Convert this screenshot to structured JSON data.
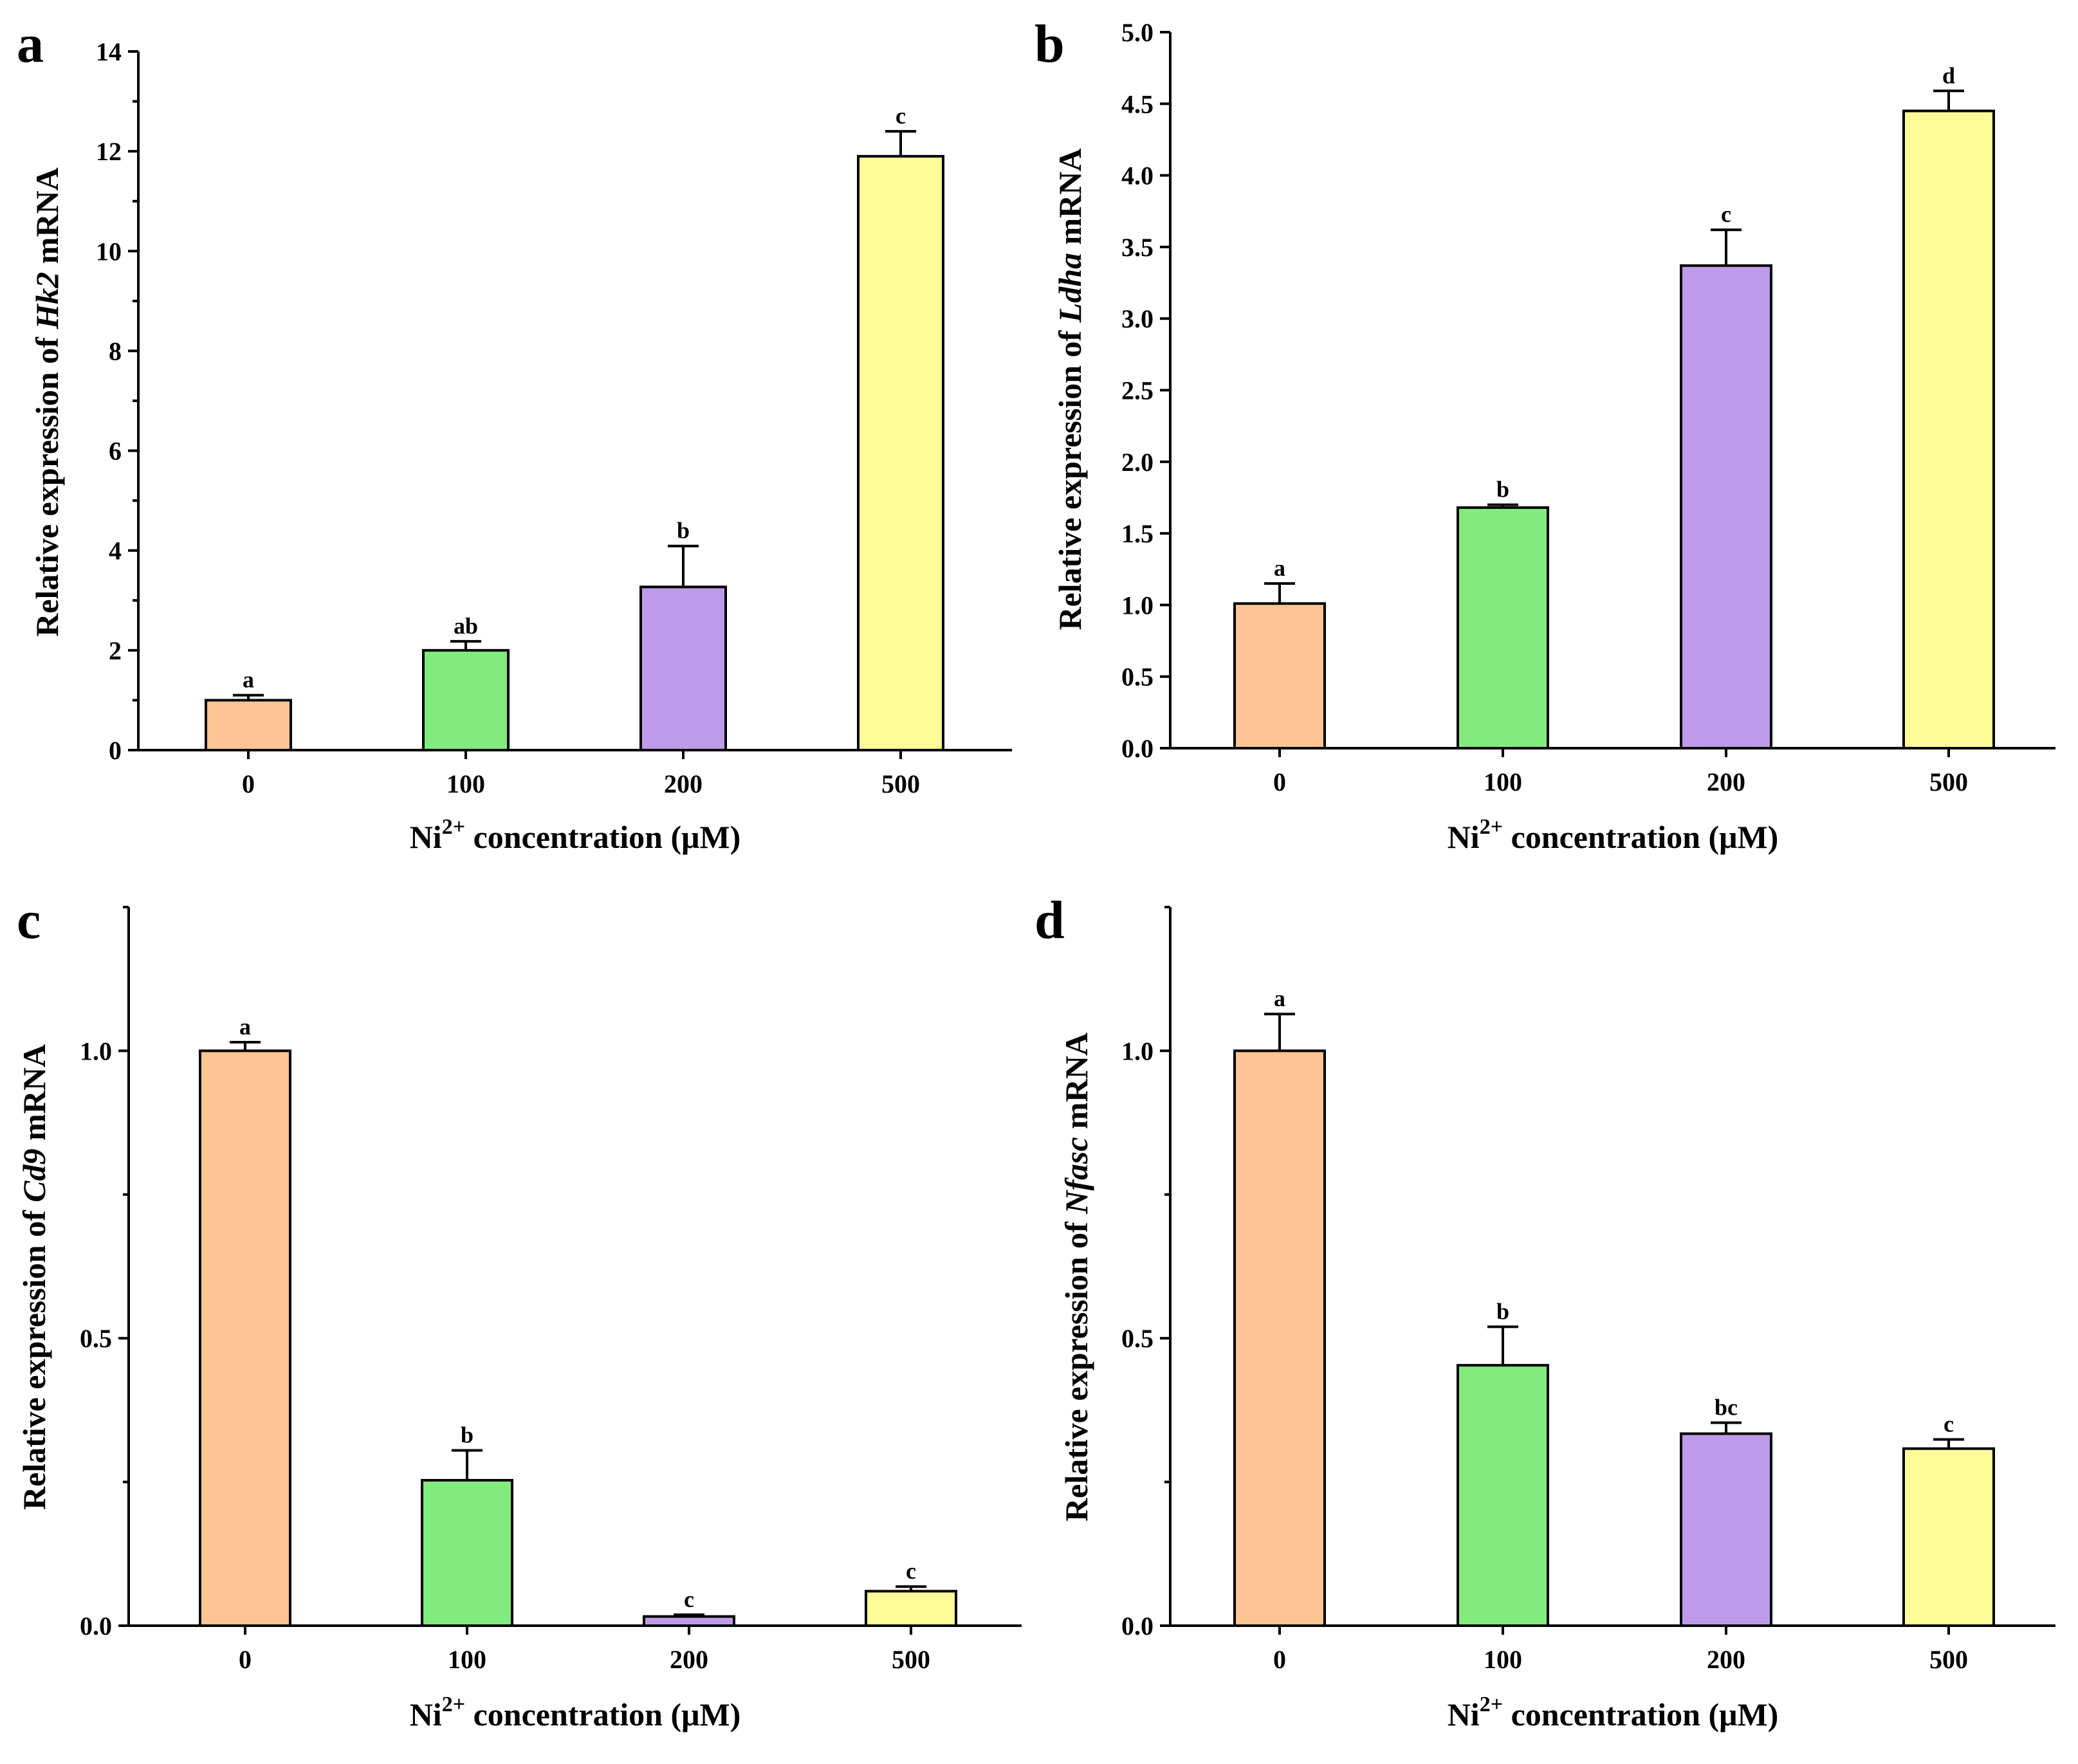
{
  "chart_data": [
    {
      "panel": "a",
      "type": "bar",
      "ylabel_prefix": "Relative expression of ",
      "ylabel_gene": "Hk2",
      "ylabel_suffix": " mRNA",
      "xlabel_prefix": "Ni",
      "xlabel_sup": "2+",
      "xlabel_suffix": " concentration (μM)",
      "categories": [
        "0",
        "100",
        "200",
        "500"
      ],
      "values": [
        1.0,
        2.0,
        3.27,
        11.9
      ],
      "errors": [
        0.1,
        0.18,
        0.82,
        0.5
      ],
      "significance": [
        "a",
        "ab",
        "b",
        "c"
      ],
      "ylim": [
        0,
        14
      ],
      "yticks": [
        0,
        2,
        4,
        6,
        8,
        10,
        12,
        14
      ],
      "ytick_labels": [
        "0",
        "2",
        "4",
        "6",
        "8",
        "10",
        "12",
        "14"
      ],
      "minor_ticks": true
    },
    {
      "panel": "b",
      "type": "bar",
      "ylabel_prefix": "Relative expression of ",
      "ylabel_gene": "Ldha",
      "ylabel_suffix": " mRNA",
      "xlabel_prefix": "Ni",
      "xlabel_sup": "2+",
      "xlabel_suffix": " concentration (μM)",
      "categories": [
        "0",
        "100",
        "200",
        "500"
      ],
      "values": [
        1.01,
        1.68,
        3.37,
        4.45
      ],
      "errors": [
        0.14,
        0.02,
        0.25,
        0.14
      ],
      "significance": [
        "a",
        "b",
        "c",
        "d"
      ],
      "ylim": [
        0,
        5
      ],
      "yticks": [
        0,
        0.5,
        1,
        1.5,
        2,
        2.5,
        3,
        3.5,
        4,
        4.5,
        5
      ],
      "ytick_labels": [
        "0.0",
        "0.5",
        "1.0",
        "1.5",
        "2.0",
        "2.5",
        "3.0",
        "3.5",
        "4.0",
        "4.5",
        "5.0"
      ],
      "minor_ticks": false
    },
    {
      "panel": "c",
      "type": "bar",
      "ylabel_prefix": "Relative expression of ",
      "ylabel_gene": "Cd9",
      "ylabel_suffix": " mRNA",
      "xlabel_prefix": "Ni",
      "xlabel_sup": "2+",
      "xlabel_suffix": " concentration (μM)",
      "categories": [
        "0",
        "100",
        "200",
        "500"
      ],
      "values": [
        1.0,
        0.253,
        0.016,
        0.06
      ],
      "errors": [
        0.015,
        0.052,
        0.003,
        0.008
      ],
      "significance": [
        "a",
        "b",
        "c",
        "c"
      ],
      "ylim": [
        0,
        1.25
      ],
      "yticks": [
        0,
        0.5,
        1.0
      ],
      "ytick_labels": [
        "0.0",
        "0.5",
        "1.0"
      ],
      "minor_ticks": true
    },
    {
      "panel": "d",
      "type": "bar",
      "ylabel_prefix": "Relative expression of ",
      "ylabel_gene": "Nfasc",
      "ylabel_suffix": " mRNA",
      "xlabel_prefix": "Ni",
      "xlabel_sup": "2+",
      "xlabel_suffix": " concentration (μM)",
      "categories": [
        "0",
        "100",
        "200",
        "500"
      ],
      "values": [
        1.0,
        0.453,
        0.334,
        0.308
      ],
      "errors": [
        0.064,
        0.067,
        0.019,
        0.016
      ],
      "significance": [
        "a",
        "b",
        "bc",
        "c"
      ],
      "ylim": [
        0,
        1.25
      ],
      "yticks": [
        0,
        0.5,
        1.0
      ],
      "ytick_labels": [
        "0.0",
        "0.5",
        "1.0"
      ],
      "minor_ticks": true
    }
  ],
  "colors": {
    "bar_0": "#FFC493",
    "bar_100": "#82EB7E",
    "bar_200": "#BD9BE8",
    "bar_500": "#FFFB98"
  }
}
